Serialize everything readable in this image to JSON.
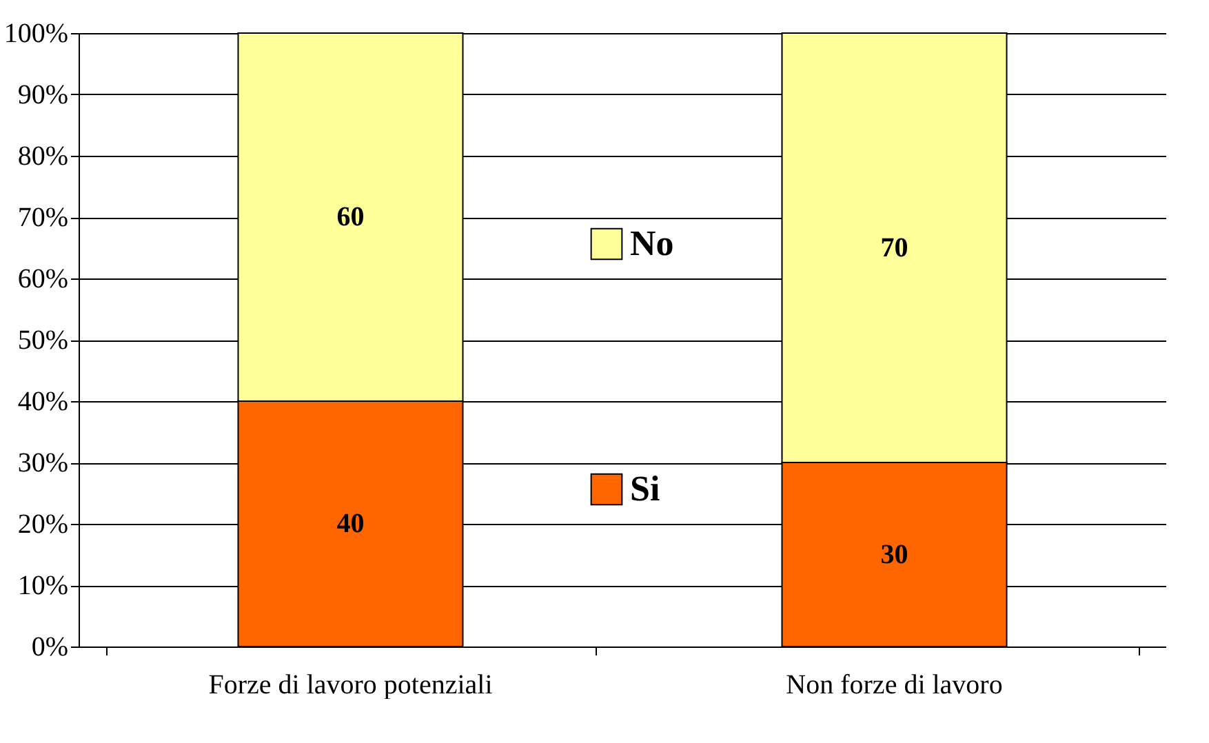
{
  "chart_data": {
    "type": "bar",
    "stacked": true,
    "categories": [
      "Forze di lavoro potenziali",
      "Non forze di lavoro"
    ],
    "series": [
      {
        "name": "Si",
        "color": "#ff6600",
        "values": [
          40,
          30
        ]
      },
      {
        "name": "No",
        "color": "#ffff99",
        "values": [
          60,
          70
        ]
      }
    ],
    "ylim": [
      0,
      100
    ],
    "yticks": [
      {
        "value": 0,
        "label": "0%"
      },
      {
        "value": 10,
        "label": "10%"
      },
      {
        "value": 20,
        "label": "20%"
      },
      {
        "value": 30,
        "label": "30%"
      },
      {
        "value": 40,
        "label": "40%"
      },
      {
        "value": 50,
        "label": "50%"
      },
      {
        "value": 60,
        "label": "60%"
      },
      {
        "value": 70,
        "label": "70%"
      },
      {
        "value": 80,
        "label": "80%"
      },
      {
        "value": 90,
        "label": "90%"
      },
      {
        "value": 100,
        "label": "100%"
      }
    ],
    "grid": "y",
    "legend": "center",
    "data_labels": true
  }
}
